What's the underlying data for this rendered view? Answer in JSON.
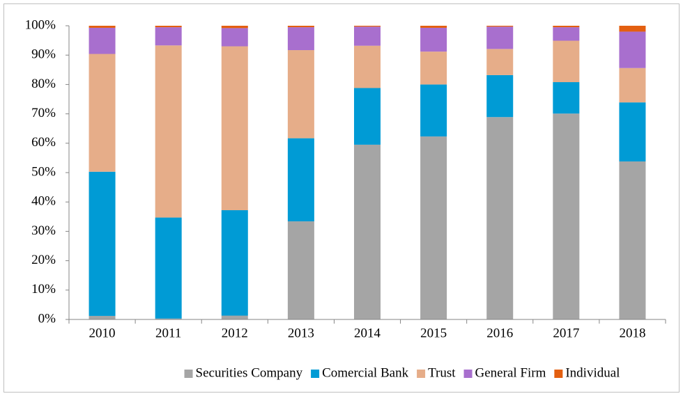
{
  "chart_data": {
    "type": "stacked_bar",
    "categories": [
      "2010",
      "2011",
      "2012",
      "2013",
      "2014",
      "2015",
      "2016",
      "2017",
      "2018"
    ],
    "series": [
      {
        "name": "Securities Company",
        "color": "#a5a5a5",
        "values": [
          1.2,
          0.3,
          1.3,
          33.4,
          59.5,
          62.3,
          68.9,
          70.1,
          53.8
        ]
      },
      {
        "name": "Comercial Bank",
        "color": "#009bd5",
        "values": [
          49.1,
          34.4,
          35.9,
          28.3,
          19.3,
          17.7,
          14.3,
          10.7,
          20.1
        ]
      },
      {
        "name": "Trust",
        "color": "#e6ad89",
        "values": [
          40.1,
          58.6,
          55.8,
          30.0,
          14.4,
          11.2,
          8.9,
          14.1,
          11.7
        ]
      },
      {
        "name": "General Firm",
        "color": "#a86fce",
        "values": [
          8.9,
          6.2,
          6.2,
          7.8,
          6.5,
          8.1,
          7.6,
          4.6,
          12.4
        ]
      },
      {
        "name": "Individual",
        "color": "#e35f10",
        "values": [
          0.7,
          0.5,
          0.8,
          0.5,
          0.3,
          0.7,
          0.3,
          0.5,
          2.0
        ]
      }
    ],
    "ylim": [
      0,
      100
    ],
    "yticks": [
      {
        "value": 0,
        "label": "0%"
      },
      {
        "value": 10,
        "label": "10%"
      },
      {
        "value": 20,
        "label": "20%"
      },
      {
        "value": 30,
        "label": "30%"
      },
      {
        "value": 40,
        "label": "40%"
      },
      {
        "value": 50,
        "label": "50%"
      },
      {
        "value": 60,
        "label": "60%"
      },
      {
        "value": 70,
        "label": "70%"
      },
      {
        "value": 80,
        "label": "80%"
      },
      {
        "value": 90,
        "label": "90%"
      },
      {
        "value": 100,
        "label": "100%"
      }
    ],
    "legend": "bottom"
  }
}
